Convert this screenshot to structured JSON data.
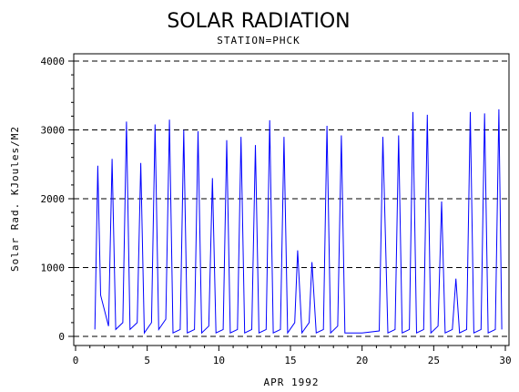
{
  "chart_data": {
    "type": "line",
    "title": "SOLAR RADIATION",
    "subtitle": "STATION=PHCK",
    "xlabel": "APR 1992",
    "ylabel": "Solar Rad. KJoules/M2",
    "xlim": [
      0,
      30
    ],
    "ylim": [
      0,
      4000
    ],
    "x_ticks": [
      0,
      5,
      10,
      15,
      20,
      25,
      30
    ],
    "y_ticks": [
      0,
      1000,
      2000,
      3000,
      4000
    ],
    "grid": "horizontal-dashed",
    "line_color": "#0000ff",
    "series": [
      {
        "values": [
          [
            1.35,
            100
          ],
          [
            1.55,
            2480
          ],
          [
            1.75,
            600
          ],
          [
            2.3,
            150
          ],
          [
            2.55,
            2580
          ],
          [
            2.8,
            100
          ],
          [
            3.3,
            200
          ],
          [
            3.55,
            3120
          ],
          [
            3.8,
            100
          ],
          [
            4.3,
            200
          ],
          [
            4.55,
            2520
          ],
          [
            4.8,
            50
          ],
          [
            5.3,
            200
          ],
          [
            5.55,
            3080
          ],
          [
            5.8,
            100
          ],
          [
            6.3,
            250
          ],
          [
            6.55,
            3150
          ],
          [
            6.8,
            50
          ],
          [
            7.3,
            100
          ],
          [
            7.55,
            3000
          ],
          [
            7.8,
            50
          ],
          [
            8.3,
            100
          ],
          [
            8.55,
            2980
          ],
          [
            8.8,
            50
          ],
          [
            9.3,
            150
          ],
          [
            9.55,
            2300
          ],
          [
            9.8,
            50
          ],
          [
            10.3,
            100
          ],
          [
            10.55,
            2850
          ],
          [
            10.8,
            50
          ],
          [
            11.3,
            100
          ],
          [
            11.55,
            2900
          ],
          [
            11.8,
            50
          ],
          [
            12.3,
            100
          ],
          [
            12.55,
            2780
          ],
          [
            12.8,
            50
          ],
          [
            13.3,
            100
          ],
          [
            13.55,
            3140
          ],
          [
            13.8,
            50
          ],
          [
            14.3,
            100
          ],
          [
            14.55,
            2900
          ],
          [
            14.8,
            50
          ],
          [
            15.3,
            200
          ],
          [
            15.5,
            1250
          ],
          [
            15.8,
            50
          ],
          [
            16.3,
            200
          ],
          [
            16.5,
            1080
          ],
          [
            16.8,
            50
          ],
          [
            17.3,
            100
          ],
          [
            17.55,
            3060
          ],
          [
            17.8,
            50
          ],
          [
            18.3,
            150
          ],
          [
            18.55,
            2920
          ],
          [
            18.8,
            50
          ],
          [
            20.0,
            50
          ],
          [
            21.2,
            80
          ],
          [
            21.45,
            2900
          ],
          [
            21.8,
            50
          ],
          [
            22.3,
            100
          ],
          [
            22.55,
            2920
          ],
          [
            22.8,
            50
          ],
          [
            23.3,
            100
          ],
          [
            23.55,
            3260
          ],
          [
            23.8,
            50
          ],
          [
            24.3,
            100
          ],
          [
            24.55,
            3220
          ],
          [
            24.8,
            50
          ],
          [
            25.3,
            150
          ],
          [
            25.55,
            1960
          ],
          [
            25.8,
            50
          ],
          [
            26.3,
            100
          ],
          [
            26.55,
            840
          ],
          [
            26.8,
            50
          ],
          [
            27.3,
            100
          ],
          [
            27.55,
            3260
          ],
          [
            27.8,
            50
          ],
          [
            28.3,
            100
          ],
          [
            28.55,
            3240
          ],
          [
            28.8,
            50
          ],
          [
            29.3,
            100
          ],
          [
            29.55,
            3300
          ],
          [
            29.75,
            100
          ]
        ]
      }
    ]
  }
}
